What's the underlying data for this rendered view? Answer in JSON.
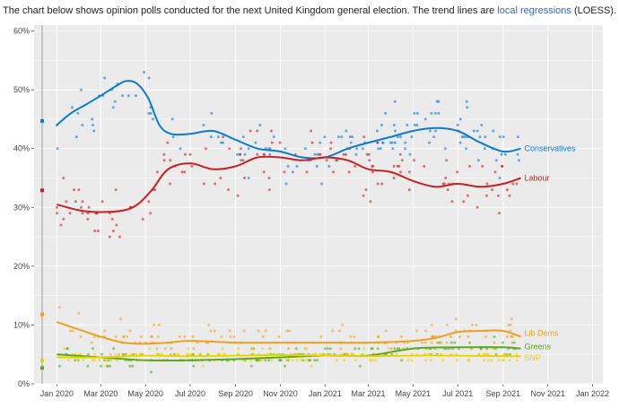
{
  "caption": {
    "before": "The chart below shows opinion polls conducted for the next United Kingdom general election. The trend lines are ",
    "link": "local regressions",
    "after": " (LOESS)."
  },
  "chart_data": {
    "type": "scatter",
    "title": "",
    "xlabel": "",
    "ylabel": "",
    "x_ticks": [
      "Jan 2020",
      "Mar 2020",
      "May 2020",
      "Jul 2020",
      "Sep 2020",
      "Nov 2020",
      "Jan 2021",
      "Mar 2021",
      "May 2021",
      "Jul 2021",
      "Sep 2021",
      "Nov 2021",
      "Jan 2022"
    ],
    "y_ticks": [
      "0%",
      "10%",
      "20%",
      "30%",
      "40%",
      "50%",
      "60%"
    ],
    "xlim": [
      "2019-12-01",
      "2022-01-15"
    ],
    "ylim": [
      0,
      61
    ],
    "grid": true,
    "previous_election": {
      "date": "2019-12-12",
      "results": {
        "Conservatives": 44.7,
        "Labour": 32.9,
        "Lib Dems": 11.8,
        "Greens": 2.7,
        "SNP": 4.0
      }
    },
    "series": [
      {
        "name": "Conservatives",
        "color": "#0a7bd3",
        "trend": [
          [
            "2020-01-01",
            44
          ],
          [
            "2020-01-20",
            46
          ],
          [
            "2020-02-10",
            47.5
          ],
          [
            "2020-03-01",
            49
          ],
          [
            "2020-03-20",
            50.5
          ],
          [
            "2020-04-05",
            51.5
          ],
          [
            "2020-04-20",
            51
          ],
          [
            "2020-05-05",
            48.5
          ],
          [
            "2020-05-20",
            44
          ],
          [
            "2020-06-05",
            42.5
          ],
          [
            "2020-07-01",
            42.5
          ],
          [
            "2020-08-01",
            43
          ],
          [
            "2020-09-01",
            41.5
          ],
          [
            "2020-10-01",
            40
          ],
          [
            "2020-11-01",
            39.5
          ],
          [
            "2020-12-01",
            38.5
          ],
          [
            "2021-01-01",
            38.5
          ],
          [
            "2021-02-01",
            40
          ],
          [
            "2021-03-01",
            41
          ],
          [
            "2021-04-01",
            42
          ],
          [
            "2021-05-01",
            43
          ],
          [
            "2021-06-01",
            43.5
          ],
          [
            "2021-07-01",
            43
          ],
          [
            "2021-08-01",
            41
          ],
          [
            "2021-09-01",
            39.5
          ],
          [
            "2021-09-25",
            40
          ]
        ]
      },
      {
        "name": "Labour",
        "color": "#cc1f1f",
        "trend": [
          [
            "2020-01-01",
            30.5
          ],
          [
            "2020-02-01",
            29.5
          ],
          [
            "2020-03-01",
            29.2
          ],
          [
            "2020-04-01",
            29.5
          ],
          [
            "2020-04-20",
            30.5
          ],
          [
            "2020-05-10",
            33
          ],
          [
            "2020-06-01",
            36.5
          ],
          [
            "2020-07-01",
            37.5
          ],
          [
            "2020-08-01",
            36.5
          ],
          [
            "2020-09-01",
            37
          ],
          [
            "2020-10-01",
            38.5
          ],
          [
            "2020-11-01",
            38.5
          ],
          [
            "2020-12-01",
            38
          ],
          [
            "2021-01-01",
            38.5
          ],
          [
            "2021-02-01",
            38
          ],
          [
            "2021-03-01",
            36.5
          ],
          [
            "2021-04-01",
            36
          ],
          [
            "2021-05-01",
            34.5
          ],
          [
            "2021-06-01",
            33.5
          ],
          [
            "2021-07-01",
            34
          ],
          [
            "2021-08-01",
            33.5
          ],
          [
            "2021-09-01",
            34
          ],
          [
            "2021-09-25",
            35
          ]
        ]
      },
      {
        "name": "Lib Dems",
        "color": "#f0a020",
        "trend": [
          [
            "2020-01-01",
            10.5
          ],
          [
            "2020-02-01",
            9.2
          ],
          [
            "2020-03-01",
            8
          ],
          [
            "2020-04-01",
            7
          ],
          [
            "2020-05-01",
            6.8
          ],
          [
            "2020-06-01",
            7
          ],
          [
            "2020-07-01",
            7.3
          ],
          [
            "2020-09-01",
            7
          ],
          [
            "2020-11-01",
            7
          ],
          [
            "2021-01-01",
            7
          ],
          [
            "2021-03-01",
            7
          ],
          [
            "2021-05-01",
            7.3
          ],
          [
            "2021-06-01",
            7.8
          ],
          [
            "2021-07-01",
            8.8
          ],
          [
            "2021-08-01",
            9
          ],
          [
            "2021-09-01",
            9
          ],
          [
            "2021-09-25",
            8
          ]
        ]
      },
      {
        "name": "Greens",
        "color": "#5aaa1e",
        "trend": [
          [
            "2020-01-01",
            5
          ],
          [
            "2020-03-01",
            4.5
          ],
          [
            "2020-05-01",
            4
          ],
          [
            "2020-07-01",
            4
          ],
          [
            "2020-09-01",
            4.2
          ],
          [
            "2020-11-01",
            4.5
          ],
          [
            "2021-01-01",
            4.8
          ],
          [
            "2021-03-01",
            4.8
          ],
          [
            "2021-05-01",
            6
          ],
          [
            "2021-07-01",
            6.2
          ],
          [
            "2021-09-01",
            6.2
          ],
          [
            "2021-09-25",
            6
          ]
        ]
      },
      {
        "name": "SNP",
        "color": "#e8d200",
        "trend": [
          [
            "2020-01-01",
            4.5
          ],
          [
            "2020-03-01",
            4.5
          ],
          [
            "2020-05-01",
            4.8
          ],
          [
            "2020-07-01",
            4.7
          ],
          [
            "2020-09-01",
            4.8
          ],
          [
            "2020-11-01",
            4.9
          ],
          [
            "2021-01-01",
            4.8
          ],
          [
            "2021-03-01",
            4.7
          ],
          [
            "2021-05-01",
            4.8
          ],
          [
            "2021-07-01",
            4.8
          ],
          [
            "2021-09-01",
            4.7
          ],
          [
            "2021-09-25",
            4.7
          ]
        ]
      }
    ]
  }
}
